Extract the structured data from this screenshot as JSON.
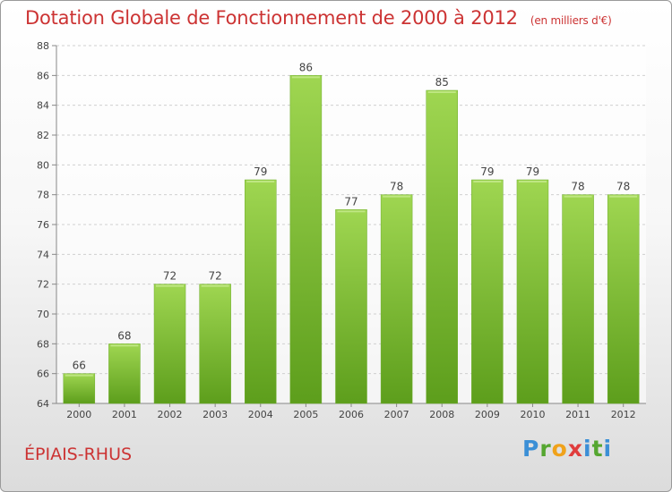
{
  "header": {
    "title": "Dotation Globale de Fonctionnement de 2000 à 2012",
    "unit": "(en milliers d'€)"
  },
  "commune": "ÉPIAIS-RHUS",
  "logo": {
    "text": "Proxiti"
  },
  "chart_data": {
    "type": "bar",
    "title": "Dotation Globale de Fonctionnement de 2000 à 2012",
    "subtitle": "(en milliers d'€)",
    "categories": [
      "2000",
      "2001",
      "2002",
      "2003",
      "2004",
      "2005",
      "2006",
      "2007",
      "2008",
      "2009",
      "2010",
      "2011",
      "2012"
    ],
    "values": [
      66,
      68,
      72,
      72,
      79,
      86,
      77,
      78,
      85,
      79,
      79,
      78,
      78
    ],
    "ylim": [
      64,
      88
    ],
    "yticks": [
      64,
      66,
      68,
      70,
      72,
      74,
      76,
      78,
      80,
      82,
      84,
      86,
      88
    ],
    "grid": true,
    "bar_color": "#7fc241"
  }
}
